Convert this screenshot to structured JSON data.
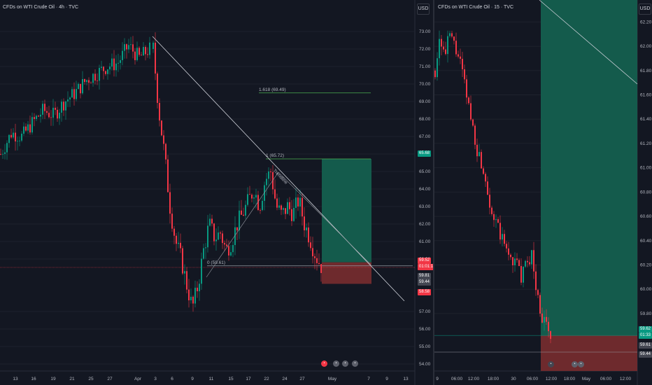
{
  "left_chart": {
    "title": "CFDs on WTI Crude Oil · 4h · TVC",
    "currency": "USD",
    "y_ticks": [
      "73.00",
      "72.00",
      "71.00",
      "70.00",
      "69.00",
      "68.00",
      "67.00",
      "66.00",
      "65.00",
      "64.00",
      "63.00",
      "62.00",
      "61.00",
      "60.00",
      "57.00",
      "56.00",
      "55.00",
      "54.00"
    ],
    "x_ticks": [
      "13",
      "16",
      "19",
      "21",
      "25",
      "27",
      "Apr",
      "3",
      "6",
      "9",
      "11",
      "15",
      "17",
      "22",
      "24",
      "27",
      "May",
      "7",
      "9",
      "13"
    ],
    "fib_labels": [
      "1.618 (69.49)",
      "1 (65.72)",
      "0 (59.61)"
    ],
    "trend_label": "Trendline",
    "price_tags": [
      {
        "text": "65.68",
        "color": "#089981"
      },
      {
        "text": "59.52",
        "color": "#f23645"
      },
      {
        "text": "01:01:18",
        "color": "#f23645"
      },
      {
        "text": "59.81",
        "color": "#434651"
      },
      {
        "text": "59.44",
        "color": "#434651"
      },
      {
        "text": "58.58",
        "color": "#f23645"
      }
    ],
    "colors": {
      "up": "#089981",
      "down": "#f23645",
      "target": "#145b4c",
      "stop": "#6e2a2d",
      "fib": "#4caf50"
    }
  },
  "right_chart": {
    "title": "CFDs on WTI Crude Oil · 15 · TVC",
    "currency": "USD",
    "y_ticks": [
      "62.20",
      "62.00",
      "61.80",
      "61.60",
      "61.40",
      "61.20",
      "61.00",
      "60.80",
      "60.60",
      "60.40",
      "60.20",
      "60.00",
      "59.80"
    ],
    "x_ticks": [
      "9",
      "06:00",
      "12:00",
      "18:00",
      "30",
      "06:00",
      "12:00",
      "18:00",
      "May",
      "06:00",
      "12:00"
    ],
    "price_tags": [
      {
        "text": "59.62",
        "color": "#089981"
      },
      {
        "text": "01:33",
        "color": "#089981"
      },
      {
        "text": "59.61",
        "color": "#434651"
      },
      {
        "text": "59.44",
        "color": "#434651"
      }
    ]
  },
  "chart_data": [
    {
      "type": "candlestick",
      "title": "CFDs on WTI Crude Oil · 4h · TVC",
      "ylim": [
        53.6,
        74.0
      ],
      "series": [
        {
          "values": [
            66.0,
            67.0,
            66.5,
            67.8,
            67.2,
            68.1,
            67.5,
            68.8,
            68.2,
            69.5,
            69.0,
            70.4,
            70.0,
            71.3,
            70.8,
            72.1,
            71.5,
            72.2,
            71.0,
            68.0,
            66.0,
            63.0,
            61.5,
            59.5,
            58.0,
            57.0,
            58.8,
            60.5,
            62.0,
            61.5,
            61.8,
            60.8,
            61.5,
            62.6,
            63.8,
            63.0,
            64.5,
            65.2,
            64.0,
            62.5,
            62.8,
            63.3,
            62.0,
            61.0,
            60.0,
            59.6
          ]
        }
      ]
    },
    {
      "type": "candlestick",
      "title": "CFDs on WTI Crude Oil · 15 · TVC",
      "ylim": [
        59.5,
        62.3
      ],
      "series": [
        {
          "values": [
            61.9,
            62.0,
            62.1,
            61.8,
            61.9,
            61.6,
            61.5,
            61.2,
            61.0,
            60.8,
            60.6,
            60.4,
            60.3,
            60.2,
            60.1,
            60.3,
            59.8,
            59.7,
            59.6
          ]
        }
      ]
    }
  ]
}
